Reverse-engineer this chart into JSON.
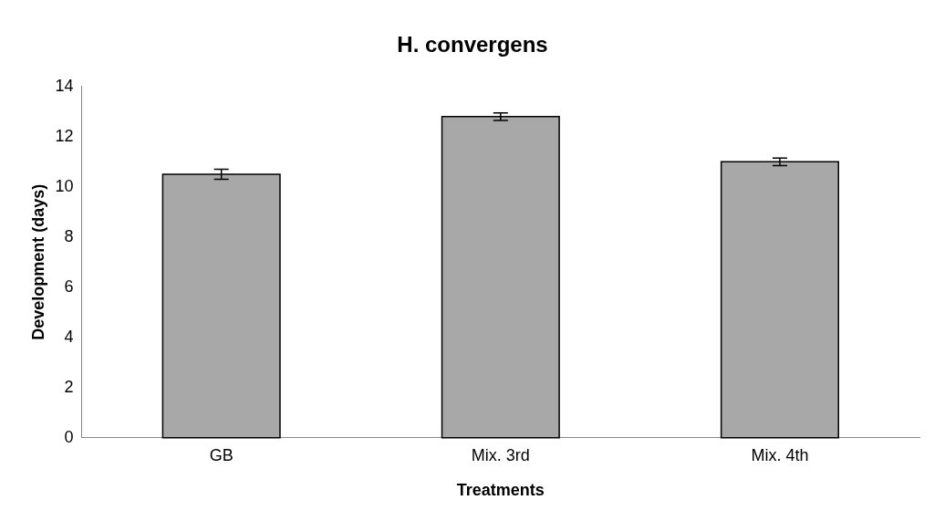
{
  "chart_data": {
    "type": "bar",
    "title": "H. convergens",
    "xlabel": "Treatments",
    "ylabel": "Development (days)",
    "categories": [
      "GB",
      "Mix. 3rd",
      "Mix. 4th"
    ],
    "values": [
      10.5,
      12.8,
      11.0
    ],
    "errors": [
      0.2,
      0.15,
      0.15
    ],
    "color": "#a8a8a8",
    "ylim": [
      0,
      14
    ],
    "yticks": [
      0,
      2,
      4,
      6,
      8,
      10,
      12,
      14
    ],
    "grid": false,
    "legend": false
  }
}
